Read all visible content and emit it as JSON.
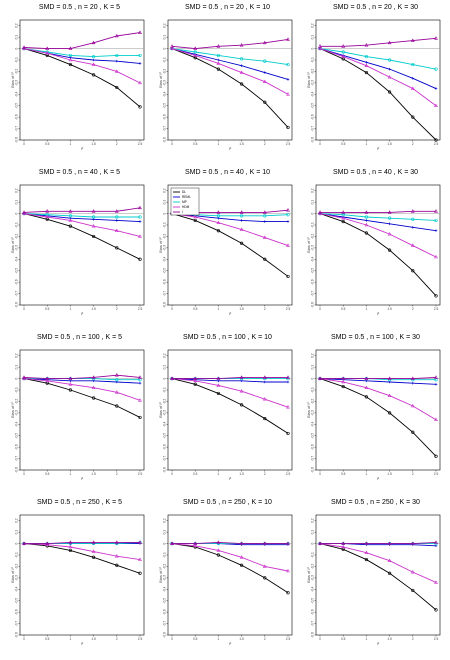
{
  "series_colors": {
    "DL": "#000000",
    "REML": "#0000cc",
    "MP": "#00cccc",
    "HDM": "#cc33cc",
    "HDM2": "#990099"
  },
  "chart_data": [
    {
      "type": "line",
      "title": "SMD = 0.5 , n = 20 , K = 5",
      "ylabel": "Bias of I²",
      "xlabel": "I²",
      "x": [
        0,
        0.5,
        1,
        1.5,
        2,
        2.5
      ],
      "series": [
        {
          "values": [
            0,
            -0.06,
            -0.14,
            -0.23,
            -0.34,
            -0.51
          ]
        },
        {
          "values": [
            0,
            -0.04,
            -0.08,
            -0.1,
            -0.11,
            -0.13
          ]
        },
        {
          "values": [
            0,
            -0.03,
            -0.06,
            -0.07,
            -0.06,
            -0.06
          ]
        },
        {
          "values": [
            0,
            -0.04,
            -0.1,
            -0.14,
            -0.2,
            -0.3
          ]
        },
        {
          "values": [
            0.01,
            0,
            0,
            0.05,
            0.11,
            0.14
          ]
        }
      ]
    },
    {
      "type": "line",
      "title": "SMD = 0.5 , n = 20 , K = 10",
      "ylabel": "Bias of I²",
      "xlabel": "I²",
      "x": [
        0,
        0.5,
        1,
        1.5,
        2,
        2.5
      ],
      "series": [
        {
          "values": [
            0,
            -0.08,
            -0.18,
            -0.31,
            -0.47,
            -0.69
          ]
        },
        {
          "values": [
            0,
            -0.05,
            -0.1,
            -0.15,
            -0.21,
            -0.27
          ]
        },
        {
          "values": [
            0,
            -0.03,
            -0.06,
            -0.09,
            -0.11,
            -0.14
          ]
        },
        {
          "values": [
            0,
            -0.06,
            -0.13,
            -0.21,
            -0.29,
            -0.4
          ]
        },
        {
          "values": [
            0.02,
            0,
            0.02,
            0.03,
            0.05,
            0.08
          ]
        }
      ]
    },
    {
      "type": "line",
      "title": "SMD = 0.5 , n = 20 , K = 30",
      "ylabel": "Bias of I²",
      "xlabel": "I²",
      "x": [
        0,
        0.5,
        1,
        1.5,
        2,
        2.5
      ],
      "series": [
        {
          "values": [
            0,
            -0.09,
            -0.21,
            -0.38,
            -0.6,
            -0.86
          ]
        },
        {
          "values": [
            0,
            -0.06,
            -0.12,
            -0.18,
            -0.26,
            -0.35
          ]
        },
        {
          "values": [
            0,
            -0.03,
            -0.07,
            -0.1,
            -0.14,
            -0.18
          ]
        },
        {
          "values": [
            0,
            -0.07,
            -0.15,
            -0.25,
            -0.35,
            -0.5
          ]
        },
        {
          "values": [
            0.02,
            0.02,
            0.03,
            0.05,
            0.07,
            0.09
          ]
        }
      ]
    },
    {
      "type": "line",
      "title": "SMD = 0.5 , n = 40 , K = 5",
      "ylabel": "Bias of I²",
      "xlabel": "I²",
      "x": [
        0,
        0.5,
        1,
        1.5,
        2,
        2.5
      ],
      "series": [
        {
          "values": [
            0,
            -0.05,
            -0.11,
            -0.2,
            -0.3,
            -0.4
          ]
        },
        {
          "values": [
            0,
            -0.02,
            -0.04,
            -0.05,
            -0.06,
            -0.07
          ]
        },
        {
          "values": [
            0,
            -0.01,
            -0.02,
            -0.03,
            -0.03,
            -0.03
          ]
        },
        {
          "values": [
            0,
            -0.03,
            -0.06,
            -0.11,
            -0.15,
            -0.2
          ]
        },
        {
          "values": [
            0.01,
            0.02,
            0.02,
            0.02,
            0.02,
            0.05
          ]
        }
      ]
    },
    {
      "type": "line",
      "title": "SMD = 0.5 , n = 40 , K = 10",
      "ylabel": "Bias of I²",
      "xlabel": "I²",
      "x": [
        0,
        0.5,
        1,
        1.5,
        2,
        2.5
      ],
      "legend": {
        "position": "top-left",
        "labels": [
          "DL",
          "REML",
          "MP",
          "HDM",
          "I"
        ]
      },
      "series": [
        {
          "values": [
            0,
            -0.06,
            -0.15,
            -0.26,
            -0.4,
            -0.55
          ]
        },
        {
          "values": [
            0,
            -0.02,
            -0.04,
            -0.06,
            -0.07,
            -0.07
          ]
        },
        {
          "values": [
            0,
            -0.01,
            -0.02,
            -0.02,
            -0.02,
            -0.01
          ]
        },
        {
          "values": [
            0,
            -0.03,
            -0.08,
            -0.14,
            -0.21,
            -0.28
          ]
        },
        {
          "values": [
            0.01,
            0.01,
            0.01,
            0.01,
            0.01,
            0.03
          ]
        }
      ]
    },
    {
      "type": "line",
      "title": "SMD = 0.5 , n = 40 , K = 30",
      "ylabel": "Bias of I²",
      "xlabel": "I²",
      "x": [
        0,
        0.5,
        1,
        1.5,
        2,
        2.5
      ],
      "series": [
        {
          "values": [
            0,
            -0.07,
            -0.17,
            -0.32,
            -0.5,
            -0.72
          ]
        },
        {
          "values": [
            0,
            -0.03,
            -0.06,
            -0.09,
            -0.12,
            -0.15
          ]
        },
        {
          "values": [
            0,
            -0.01,
            -0.03,
            -0.04,
            -0.05,
            -0.06
          ]
        },
        {
          "values": [
            0,
            -0.04,
            -0.1,
            -0.18,
            -0.28,
            -0.38
          ]
        },
        {
          "values": [
            0.01,
            0.01,
            0.01,
            0.01,
            0.02,
            0.02
          ]
        }
      ]
    },
    {
      "type": "line",
      "title": "SMD = 0.5 , n = 100 , K = 5",
      "ylabel": "Bias of I²",
      "xlabel": "I²",
      "x": [
        0,
        0.5,
        1,
        1.5,
        2,
        2.5
      ],
      "series": [
        {
          "values": [
            0,
            -0.04,
            -0.1,
            -0.17,
            -0.24,
            -0.34
          ]
        },
        {
          "values": [
            0,
            -0.01,
            -0.02,
            -0.02,
            -0.03,
            -0.04
          ]
        },
        {
          "values": [
            0,
            0,
            0,
            0,
            -0.01,
            -0.01
          ]
        },
        {
          "values": [
            0,
            -0.02,
            -0.05,
            -0.08,
            -0.12,
            -0.19
          ]
        },
        {
          "values": [
            0.01,
            0,
            0,
            0.01,
            0.03,
            0.01
          ]
        }
      ]
    },
    {
      "type": "line",
      "title": "SMD = 0.5 , n = 100 , K = 10",
      "ylabel": "Bias of I²",
      "xlabel": "I²",
      "x": [
        0,
        0.5,
        1,
        1.5,
        2,
        2.5
      ],
      "series": [
        {
          "values": [
            0,
            -0.05,
            -0.13,
            -0.23,
            -0.35,
            -0.48
          ]
        },
        {
          "values": [
            0,
            -0.01,
            -0.02,
            -0.02,
            -0.03,
            -0.03
          ]
        },
        {
          "values": [
            0,
            0,
            0,
            0,
            0,
            0
          ]
        },
        {
          "values": [
            0,
            -0.02,
            -0.06,
            -0.11,
            -0.18,
            -0.25
          ]
        },
        {
          "values": [
            0,
            0,
            0,
            0.01,
            0.01,
            0.01
          ]
        }
      ]
    },
    {
      "type": "line",
      "title": "SMD = 0.5 , n = 100 , K = 30",
      "ylabel": "Bias of I²",
      "xlabel": "I²",
      "x": [
        0,
        0.5,
        1,
        1.5,
        2,
        2.5
      ],
      "series": [
        {
          "values": [
            0,
            -0.07,
            -0.16,
            -0.3,
            -0.47,
            -0.68
          ]
        },
        {
          "values": [
            0,
            -0.01,
            -0.02,
            -0.03,
            -0.04,
            -0.05
          ]
        },
        {
          "values": [
            0,
            0,
            0,
            -0.01,
            -0.01,
            -0.01
          ]
        },
        {
          "values": [
            0,
            -0.03,
            -0.08,
            -0.15,
            -0.24,
            -0.36
          ]
        },
        {
          "values": [
            0,
            0,
            0,
            0,
            0,
            0.01
          ]
        }
      ]
    },
    {
      "type": "line",
      "title": "SMD = 0.5 , n = 250 , K = 5",
      "ylabel": "Bias of I²",
      "xlabel": "I²",
      "x": [
        0,
        0.5,
        1,
        1.5,
        2,
        2.5
      ],
      "series": [
        {
          "values": [
            0,
            -0.02,
            -0.06,
            -0.12,
            -0.19,
            -0.26
          ]
        },
        {
          "values": [
            0,
            0,
            0,
            0,
            0,
            0
          ]
        },
        {
          "values": [
            0,
            0,
            0,
            0,
            0,
            0.01
          ]
        },
        {
          "values": [
            0,
            -0.01,
            -0.03,
            -0.07,
            -0.11,
            -0.14
          ]
        },
        {
          "values": [
            0,
            0,
            0.01,
            0.01,
            0.01,
            0.01
          ]
        }
      ]
    },
    {
      "type": "line",
      "title": "SMD = 0.5 , n = 250 , K = 10",
      "ylabel": "Bias of I²",
      "xlabel": "I²",
      "x": [
        0,
        0.5,
        1,
        1.5,
        2,
        2.5
      ],
      "series": [
        {
          "values": [
            0,
            -0.03,
            -0.1,
            -0.19,
            -0.3,
            -0.43
          ]
        },
        {
          "values": [
            0,
            0,
            0,
            -0.01,
            -0.01,
            -0.01
          ]
        },
        {
          "values": [
            0,
            0,
            0,
            0,
            0,
            0
          ]
        },
        {
          "values": [
            0,
            -0.02,
            -0.06,
            -0.12,
            -0.2,
            -0.24
          ]
        },
        {
          "values": [
            0,
            0,
            0.01,
            0,
            0,
            0
          ]
        }
      ]
    },
    {
      "type": "line",
      "title": "SMD = 0.5 , n = 250 , K = 30",
      "ylabel": "Bias of I²",
      "xlabel": "I²",
      "x": [
        0,
        0.5,
        1,
        1.5,
        2,
        2.5
      ],
      "series": [
        {
          "values": [
            0,
            -0.05,
            -0.14,
            -0.26,
            -0.41,
            -0.58
          ]
        },
        {
          "values": [
            0,
            0,
            -0.01,
            -0.01,
            -0.01,
            -0.02
          ]
        },
        {
          "values": [
            0,
            0,
            0,
            0,
            0,
            0
          ]
        },
        {
          "values": [
            0,
            -0.03,
            -0.08,
            -0.15,
            -0.25,
            -0.34
          ]
        },
        {
          "values": [
            0,
            0,
            0,
            0,
            0,
            0.01
          ]
        }
      ]
    }
  ]
}
